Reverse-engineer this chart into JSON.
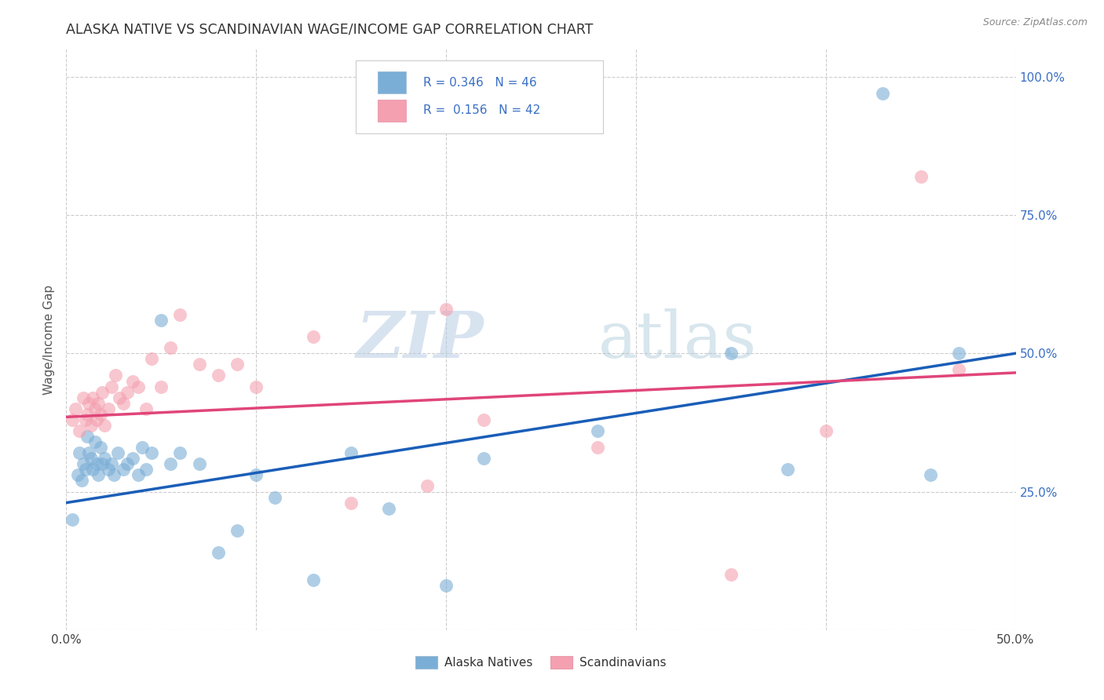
{
  "title": "ALASKA NATIVE VS SCANDINAVIAN WAGE/INCOME GAP CORRELATION CHART",
  "source": "Source: ZipAtlas.com",
  "ylabel": "Wage/Income Gap",
  "xmin": 0.0,
  "xmax": 0.5,
  "ymin": 0.0,
  "ymax": 1.05,
  "yticks": [
    0.25,
    0.5,
    0.75,
    1.0
  ],
  "ytick_labels": [
    "25.0%",
    "50.0%",
    "75.0%",
    "100.0%"
  ],
  "xticks": [
    0.0,
    0.1,
    0.2,
    0.3,
    0.4,
    0.5
  ],
  "alaska_R": 0.346,
  "alaska_N": 46,
  "scand_R": 0.156,
  "scand_N": 42,
  "alaska_color": "#7aaed6",
  "scand_color": "#f4a0b0",
  "alaska_line_color": "#1a5eb8",
  "scand_line_color": "#e0457a",
  "legend_R_color": "#3a6fc4",
  "alaska_line_y0": 0.23,
  "alaska_line_y1": 0.5,
  "scand_line_y0": 0.385,
  "scand_line_y1": 0.465,
  "alaska_x": [
    0.003,
    0.006,
    0.007,
    0.008,
    0.009,
    0.01,
    0.011,
    0.012,
    0.013,
    0.014,
    0.015,
    0.016,
    0.017,
    0.018,
    0.019,
    0.02,
    0.022,
    0.024,
    0.025,
    0.027,
    0.03,
    0.032,
    0.035,
    0.038,
    0.04,
    0.042,
    0.045,
    0.05,
    0.055,
    0.06,
    0.07,
    0.08,
    0.09,
    0.1,
    0.11,
    0.13,
    0.15,
    0.17,
    0.2,
    0.22,
    0.28,
    0.35,
    0.38,
    0.43,
    0.455,
    0.47
  ],
  "alaska_y": [
    0.2,
    0.28,
    0.32,
    0.27,
    0.3,
    0.29,
    0.35,
    0.32,
    0.31,
    0.29,
    0.34,
    0.3,
    0.28,
    0.33,
    0.3,
    0.31,
    0.29,
    0.3,
    0.28,
    0.32,
    0.29,
    0.3,
    0.31,
    0.28,
    0.33,
    0.29,
    0.32,
    0.56,
    0.3,
    0.32,
    0.3,
    0.14,
    0.18,
    0.28,
    0.24,
    0.09,
    0.32,
    0.22,
    0.08,
    0.31,
    0.36,
    0.5,
    0.29,
    0.97,
    0.28,
    0.5
  ],
  "scand_x": [
    0.003,
    0.005,
    0.007,
    0.009,
    0.01,
    0.011,
    0.012,
    0.013,
    0.014,
    0.015,
    0.016,
    0.017,
    0.018,
    0.019,
    0.02,
    0.022,
    0.024,
    0.026,
    0.028,
    0.03,
    0.032,
    0.035,
    0.038,
    0.042,
    0.045,
    0.05,
    0.055,
    0.06,
    0.07,
    0.08,
    0.09,
    0.1,
    0.13,
    0.15,
    0.19,
    0.2,
    0.22,
    0.28,
    0.35,
    0.4,
    0.45,
    0.47
  ],
  "scand_y": [
    0.38,
    0.4,
    0.36,
    0.42,
    0.38,
    0.39,
    0.41,
    0.37,
    0.42,
    0.4,
    0.38,
    0.41,
    0.39,
    0.43,
    0.37,
    0.4,
    0.44,
    0.46,
    0.42,
    0.41,
    0.43,
    0.45,
    0.44,
    0.4,
    0.49,
    0.44,
    0.51,
    0.57,
    0.48,
    0.46,
    0.48,
    0.44,
    0.53,
    0.23,
    0.26,
    0.58,
    0.38,
    0.33,
    0.1,
    0.36,
    0.82,
    0.47
  ],
  "watermark_zip": "ZIP",
  "watermark_atlas": "atlas",
  "background_color": "#ffffff",
  "grid_color": "#cccccc"
}
